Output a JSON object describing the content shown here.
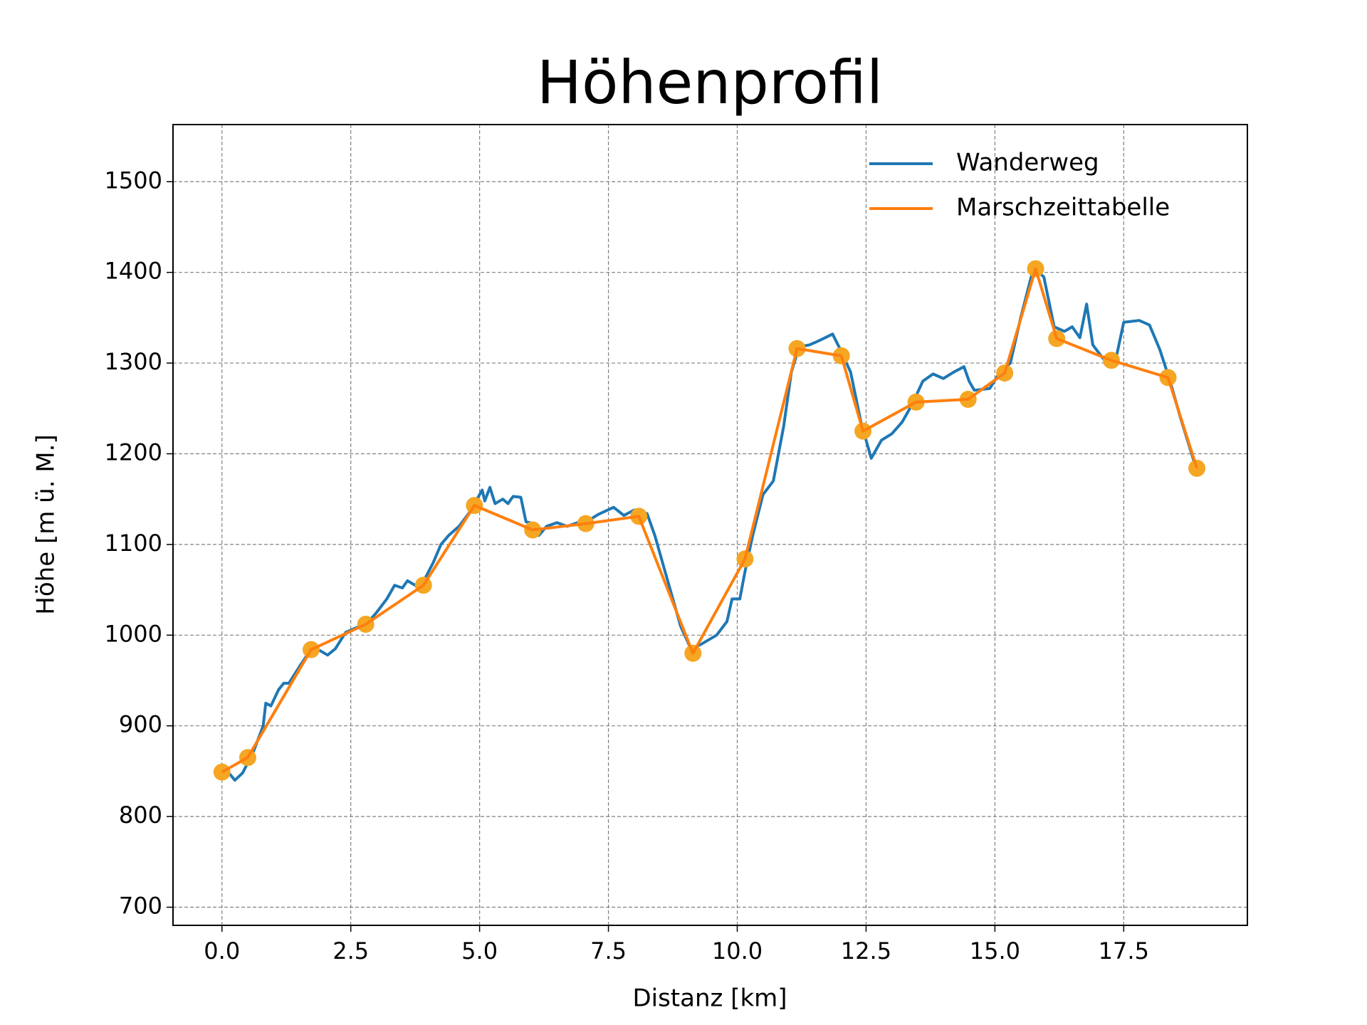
{
  "chart_data": {
    "type": "line",
    "title": "Höhenprofil",
    "xlabel": "Distanz [km]",
    "ylabel": "Höhe [m ü. M.]",
    "xlim": [
      -0.95,
      19.9
    ],
    "ylim": [
      680,
      1563
    ],
    "xticks": [
      {
        "value": 0,
        "label": "0.0"
      },
      2.5,
      {
        "value": 5,
        "label": "5.0"
      },
      7.5,
      {
        "value": 10,
        "label": "10.0"
      },
      12.5,
      {
        "value": 15,
        "label": "15.0"
      },
      17.5
    ],
    "yticks": [
      700,
      800,
      900,
      1000,
      1100,
      1200,
      1300,
      1400,
      1500
    ],
    "grid": true,
    "legend": "upper right",
    "series": [
      {
        "name": "Wanderweg",
        "color": "#1f77b4",
        "x": [
          0,
          0.15,
          0.25,
          0.4,
          0.6,
          0.8,
          0.85,
          0.95,
          1.1,
          1.2,
          1.3,
          1.5,
          1.7,
          1.9,
          2.05,
          2.2,
          2.4,
          2.6,
          2.8,
          3.0,
          3.2,
          3.35,
          3.5,
          3.6,
          3.75,
          3.9,
          4.1,
          4.25,
          4.4,
          4.6,
          4.8,
          4.95,
          5.05,
          5.1,
          5.2,
          5.3,
          5.45,
          5.55,
          5.65,
          5.8,
          5.9,
          6.05,
          6.15,
          6.3,
          6.5,
          6.7,
          6.9,
          7.1,
          7.3,
          7.6,
          7.8,
          8.0,
          8.25,
          8.4,
          8.6,
          8.9,
          9.1,
          9.3,
          9.6,
          9.8,
          9.9,
          10.05,
          10.15,
          10.3,
          10.5,
          10.7,
          10.9,
          11.05,
          11.2,
          11.4,
          11.6,
          11.85,
          12.0,
          12.2,
          12.4,
          12.6,
          12.8,
          13.0,
          13.2,
          13.4,
          13.6,
          13.8,
          14.0,
          14.2,
          14.4,
          14.5,
          14.6,
          14.9,
          15.1,
          15.3,
          15.5,
          15.75,
          15.95,
          16.15,
          16.35,
          16.5,
          16.65,
          16.78,
          16.9,
          17.1,
          17.35,
          17.5,
          17.8,
          18.0,
          18.2,
          18.4,
          18.6,
          18.9
        ],
        "values": [
          845,
          847,
          840,
          848,
          870,
          900,
          925,
          922,
          940,
          947,
          947,
          965,
          982,
          983,
          978,
          985,
          1003,
          1008,
          1012,
          1025,
          1040,
          1055,
          1052,
          1060,
          1055,
          1058,
          1080,
          1100,
          1110,
          1120,
          1135,
          1150,
          1160,
          1148,
          1163,
          1145,
          1150,
          1145,
          1153,
          1152,
          1125,
          1123,
          1110,
          1120,
          1124,
          1120,
          1124,
          1126,
          1133,
          1141,
          1132,
          1138,
          1134,
          1110,
          1070,
          1010,
          985,
          990,
          1000,
          1015,
          1040,
          1040,
          1070,
          1110,
          1155,
          1170,
          1230,
          1290,
          1318,
          1320,
          1325,
          1332,
          1315,
          1290,
          1235,
          1195,
          1215,
          1222,
          1235,
          1255,
          1280,
          1288,
          1283,
          1290,
          1296,
          1280,
          1270,
          1272,
          1290,
          1300,
          1350,
          1405,
          1395,
          1340,
          1335,
          1340,
          1328,
          1365,
          1320,
          1305,
          1305,
          1345,
          1347,
          1342,
          1315,
          1280,
          1240,
          1185
        ]
      },
      {
        "name": "Marschzeittabelle",
        "color": "#ff7f0e",
        "marker_color": "#f5a623",
        "x": [
          0,
          0.5,
          1.73,
          2.79,
          3.91,
          4.9,
          6.03,
          7.06,
          8.09,
          9.14,
          10.15,
          11.16,
          12.02,
          12.44,
          13.47,
          14.48,
          15.19,
          15.79,
          16.2,
          17.26,
          18.36,
          18.92
        ],
        "values": [
          849,
          865,
          984,
          1012,
          1055,
          1143,
          1116,
          1123,
          1131,
          980,
          1084,
          1316,
          1308,
          1225,
          1257,
          1260,
          1289,
          1404,
          1327,
          1303,
          1284,
          1184
        ]
      }
    ]
  }
}
